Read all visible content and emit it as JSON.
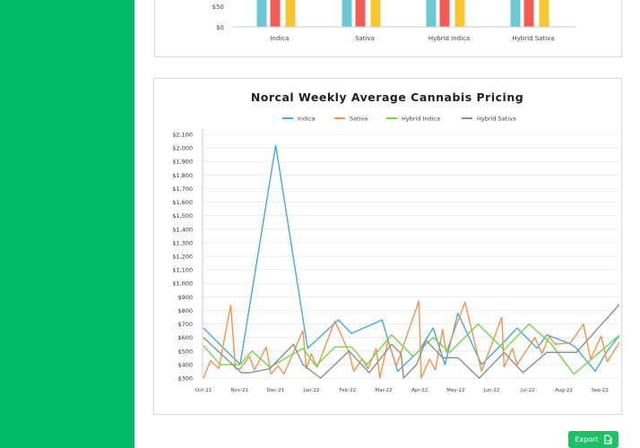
{
  "bar_chart": {
    "chart_data": {
      "type": "bar",
      "categories": [
        "Indica",
        "Sativa",
        "Hybrid Indica",
        "Hybrid Sativa"
      ],
      "ytick_labels": [
        "$0",
        "$50"
      ],
      "series_colors": [
        "#6cc9d3",
        "#f25c54",
        "#f8c630"
      ]
    }
  },
  "line_chart": {
    "chart_data": {
      "type": "line",
      "title": "Norcal Weekly Average Cannabis Pricing",
      "legend_position": "top",
      "grid": true,
      "ylim": [
        300,
        2100
      ],
      "ytick_labels": [
        "$300",
        "$400",
        "$500",
        "$600",
        "$700",
        "$800",
        "$900",
        "$1,000",
        "$1,100",
        "$1,200",
        "$1,300",
        "$1,400",
        "$1,500",
        "$1,600",
        "$1,700",
        "$1,800",
        "$1,900",
        "$2,000",
        "$2,100"
      ],
      "xtick_labels": [
        "Oct-21",
        "Nov-21",
        "Dec-21",
        "Jan-22",
        "Feb-22",
        "Mar-22",
        "Apr-22",
        "May-22",
        "Jun-22",
        "Jul-22",
        "Aug-22",
        "Sep-22"
      ],
      "series": [
        {
          "name": "Indica",
          "color": "#45a9e0",
          "points": [
            [
              "2021-10-01",
              670
            ],
            [
              "2021-11-01",
              400
            ],
            [
              "2021-12-01",
              2020
            ],
            [
              "2021-12-28",
              520
            ],
            [
              "2022-01-23",
              730
            ],
            [
              "2022-02-03",
              630
            ],
            [
              "2022-03-01",
              730
            ],
            [
              "2022-03-06",
              580
            ],
            [
              "2022-03-14",
              350
            ],
            [
              "2022-04-01",
              500
            ],
            [
              "2022-04-13",
              670
            ],
            [
              "2022-04-23",
              400
            ],
            [
              "2022-05-04",
              780
            ],
            [
              "2022-05-24",
              400
            ],
            [
              "2022-06-10",
              550
            ],
            [
              "2022-06-23",
              670
            ],
            [
              "2022-07-10",
              520
            ],
            [
              "2022-07-18",
              620
            ],
            [
              "2022-08-05",
              560
            ],
            [
              "2022-08-11",
              530
            ],
            [
              "2022-08-28",
              350
            ],
            [
              "2022-09-07",
              500
            ],
            [
              "2022-09-18",
              620
            ]
          ]
        },
        {
          "name": "Sativa",
          "color": "#f0944f",
          "points": [
            [
              "2021-10-01",
              300
            ],
            [
              "2021-10-07",
              430
            ],
            [
              "2021-10-14",
              370
            ],
            [
              "2021-10-24",
              840
            ],
            [
              "2021-10-28",
              370
            ],
            [
              "2021-11-01",
              370
            ],
            [
              "2021-11-09",
              460
            ],
            [
              "2021-11-13",
              360
            ],
            [
              "2021-11-23",
              530
            ],
            [
              "2021-11-27",
              330
            ],
            [
              "2021-12-03",
              390
            ],
            [
              "2021-12-08",
              330
            ],
            [
              "2021-12-18",
              530
            ],
            [
              "2021-12-24",
              650
            ],
            [
              "2021-12-27",
              370
            ],
            [
              "2021-12-31",
              480
            ],
            [
              "2022-01-05",
              380
            ],
            [
              "2022-01-20",
              720
            ],
            [
              "2022-02-01",
              490
            ],
            [
              "2022-02-05",
              350
            ],
            [
              "2022-02-12",
              440
            ],
            [
              "2022-02-17",
              370
            ],
            [
              "2022-02-24",
              520
            ],
            [
              "2022-02-27",
              300
            ],
            [
              "2022-03-06",
              580
            ],
            [
              "2022-03-13",
              390
            ],
            [
              "2022-04-01",
              870
            ],
            [
              "2022-04-03",
              300
            ],
            [
              "2022-04-10",
              440
            ],
            [
              "2022-04-15",
              360
            ],
            [
              "2022-04-21",
              660
            ],
            [
              "2022-04-24",
              490
            ],
            [
              "2022-05-10",
              860
            ],
            [
              "2022-05-24",
              350
            ],
            [
              "2022-06-10",
              750
            ],
            [
              "2022-06-12",
              380
            ],
            [
              "2022-06-19",
              520
            ],
            [
              "2022-06-23",
              400
            ],
            [
              "2022-07-08",
              600
            ],
            [
              "2022-07-14",
              480
            ],
            [
              "2022-07-20",
              610
            ],
            [
              "2022-07-25",
              550
            ],
            [
              "2022-08-07",
              560
            ],
            [
              "2022-08-18",
              700
            ],
            [
              "2022-08-24",
              440
            ],
            [
              "2022-09-02",
              610
            ],
            [
              "2022-09-07",
              420
            ],
            [
              "2022-09-18",
              570
            ]
          ]
        },
        {
          "name": "Hybrid Indica",
          "color": "#6fd84a",
          "points": [
            [
              "2021-10-01",
              540
            ],
            [
              "2021-10-15",
              400
            ],
            [
              "2021-11-01",
              400
            ],
            [
              "2021-11-11",
              500
            ],
            [
              "2021-11-26",
              380
            ],
            [
              "2021-12-24",
              520
            ],
            [
              "2022-01-04",
              390
            ],
            [
              "2022-01-20",
              530
            ],
            [
              "2022-02-03",
              530
            ],
            [
              "2022-02-16",
              400
            ],
            [
              "2022-03-09",
              620
            ],
            [
              "2022-03-27",
              460
            ],
            [
              "2022-04-13",
              600
            ],
            [
              "2022-04-27",
              490
            ],
            [
              "2022-05-21",
              700
            ],
            [
              "2022-06-12",
              510
            ],
            [
              "2022-07-03",
              700
            ],
            [
              "2022-07-21",
              560
            ],
            [
              "2022-08-10",
              330
            ],
            [
              "2022-09-18",
              620
            ]
          ]
        },
        {
          "name": "Hybrid Sativa",
          "color": "#8e8e8e",
          "points": [
            [
              "2021-10-01",
              600
            ],
            [
              "2021-11-02",
              340
            ],
            [
              "2021-11-09",
              340
            ],
            [
              "2021-11-26",
              370
            ],
            [
              "2021-12-16",
              550
            ],
            [
              "2021-12-24",
              400
            ],
            [
              "2022-01-08",
              300
            ],
            [
              "2022-02-01",
              500
            ],
            [
              "2022-02-18",
              340
            ],
            [
              "2022-03-09",
              550
            ],
            [
              "2022-03-17",
              480
            ],
            [
              "2022-03-19",
              300
            ],
            [
              "2022-03-30",
              400
            ],
            [
              "2022-04-07",
              580
            ],
            [
              "2022-04-21",
              450
            ],
            [
              "2022-05-04",
              450
            ],
            [
              "2022-05-22",
              300
            ],
            [
              "2022-06-12",
              490
            ],
            [
              "2022-06-28",
              340
            ],
            [
              "2022-07-18",
              490
            ],
            [
              "2022-08-12",
              490
            ],
            [
              "2022-09-18",
              850
            ]
          ]
        }
      ]
    }
  },
  "export_button": {
    "label": "Export",
    "icon": "file-export-icon"
  },
  "colors": {
    "sidebar": "#00b96b",
    "button": "#1fbf6a"
  }
}
